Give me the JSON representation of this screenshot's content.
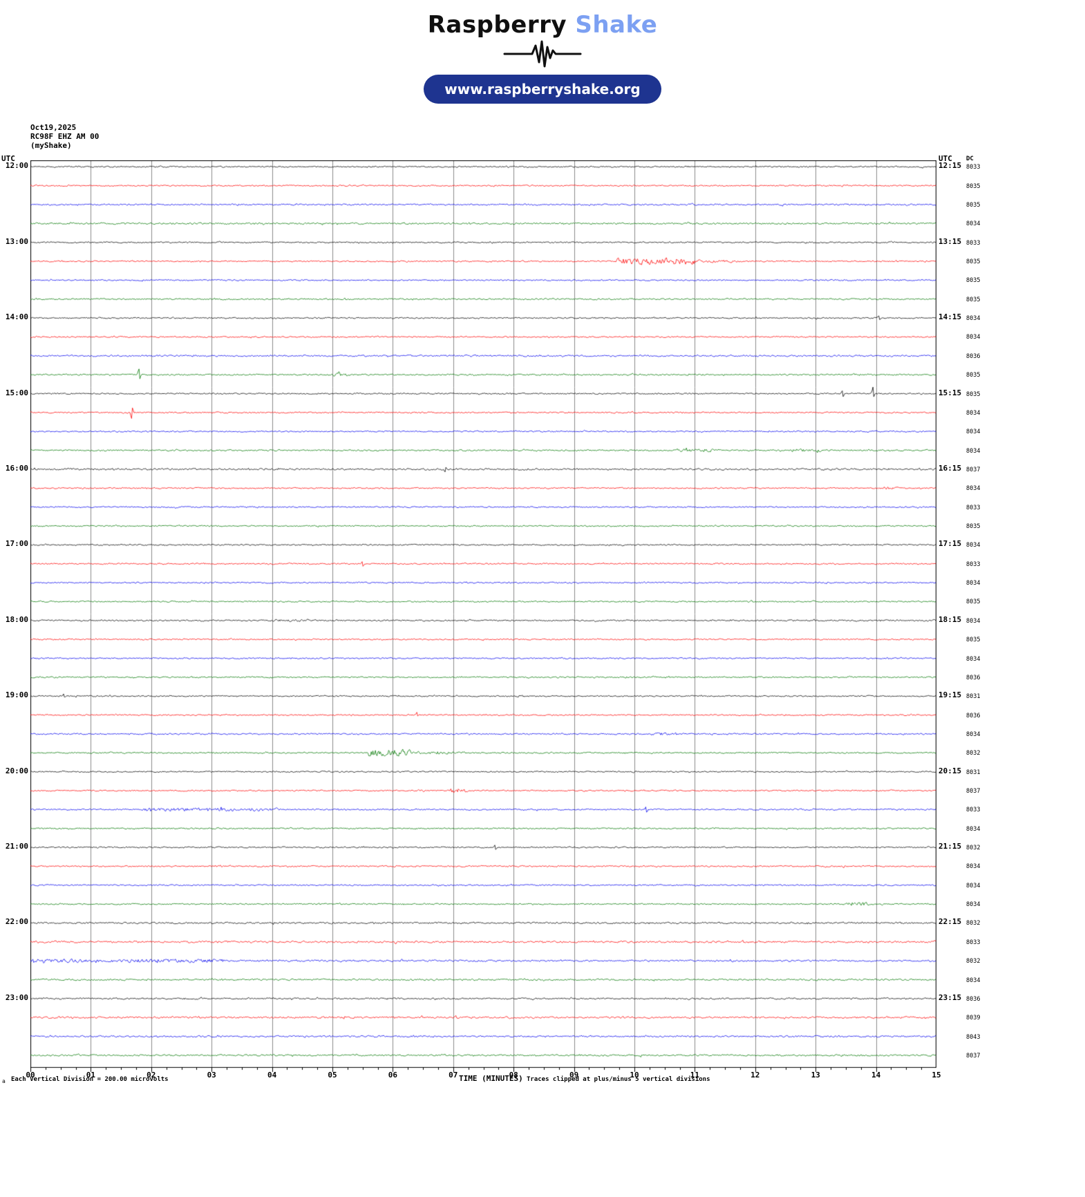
{
  "logo": {
    "word1": "Raspberry",
    "word2": "Shake",
    "accent_color": "#7ca0f2",
    "pill_color": "#1e3490",
    "url_label": "www.raspberryshake.org"
  },
  "station": {
    "date": "Oct19,2025",
    "id": "RC98F EHZ AM 00",
    "name": "(myShake)"
  },
  "axis": {
    "utc_left": "UTC",
    "utc_right": "UTC",
    "dc": "DC",
    "x_ticks": [
      "00",
      "01",
      "02",
      "03",
      "04",
      "05",
      "06",
      "07",
      "08",
      "09",
      "10",
      "11",
      "12",
      "13",
      "14",
      "15"
    ],
    "xlabel": "TIME (MINUTES)",
    "scale_note": "Each Vertical Division =  200.00 microvolts",
    "clip_note": "Traces clipped at plus/minus 5 vertical divisions",
    "corner_mark": "a"
  },
  "chart_data": {
    "type": "line",
    "description": "Helicorder seismogram, 48 traces of 15 minutes each, 12:00-24:00 UTC",
    "x_range_minutes": [
      0,
      15
    ],
    "rows_per_hour": 4,
    "colors_cycle": [
      "#000000",
      "#ff0000",
      "#0000ee",
      "#007700"
    ],
    "hours": [
      "12:00",
      "13:00",
      "14:00",
      "15:00",
      "16:00",
      "17:00",
      "18:00",
      "19:00",
      "20:00",
      "21:00",
      "22:00",
      "23:00"
    ],
    "right_labels": [
      "12:15",
      "13:15",
      "14:15",
      "15:15",
      "16:15",
      "17:15",
      "18:15",
      "19:15",
      "20:15",
      "21:15",
      "22:15",
      "23:15"
    ],
    "rows": [
      {
        "start": "12:00",
        "dc": 8033,
        "noise": 1.0
      },
      {
        "start": "12:15",
        "dc": 8035,
        "noise": 1.0
      },
      {
        "start": "12:30",
        "dc": 8035,
        "noise": 1.15
      },
      {
        "start": "12:45",
        "dc": 8034,
        "noise": 1.3
      },
      {
        "start": "13:00",
        "dc": 8033,
        "noise": 1.0
      },
      {
        "start": "13:15",
        "dc": 8035,
        "noise": 1.0,
        "events": [
          {
            "t0": 9.7,
            "t1": 11.0,
            "amp": 5
          },
          {
            "t0": 11.0,
            "t1": 11.7,
            "amp": 2
          }
        ]
      },
      {
        "start": "13:30",
        "dc": 8035,
        "noise": 1.0
      },
      {
        "start": "13:45",
        "dc": 8035,
        "noise": 1.1
      },
      {
        "start": "14:00",
        "dc": 8034,
        "noise": 1.0,
        "events": [
          {
            "t": 14.05,
            "amp": 4
          }
        ]
      },
      {
        "start": "14:15",
        "dc": 8034,
        "noise": 1.0
      },
      {
        "start": "14:30",
        "dc": 8036,
        "noise": 1.25
      },
      {
        "start": "14:45",
        "dc": 8035,
        "noise": 1.1,
        "events": [
          {
            "t": 1.8,
            "amp": 9
          },
          {
            "t0": 5.0,
            "t1": 5.25,
            "amp": 2.5
          }
        ]
      },
      {
        "start": "15:00",
        "dc": 8035,
        "noise": 1.0,
        "events": [
          {
            "t": 13.45,
            "amp": 6
          },
          {
            "t": 13.95,
            "amp": 9
          }
        ]
      },
      {
        "start": "15:15",
        "dc": 8034,
        "noise": 1.0,
        "events": [
          {
            "t": 1.68,
            "amp": 10,
            "dir": -1
          }
        ]
      },
      {
        "start": "15:30",
        "dc": 8034,
        "noise": 1.0
      },
      {
        "start": "15:45",
        "dc": 8034,
        "noise": 1.1,
        "events": [
          {
            "t0": 10.7,
            "t1": 11.4,
            "amp": 2.2
          },
          {
            "t0": 12.6,
            "t1": 13.1,
            "amp": 2.2
          }
        ]
      },
      {
        "start": "16:00",
        "dc": 8037,
        "noise": 1.35,
        "events": [
          {
            "t": 6.87,
            "amp": 5,
            "dir": -1
          }
        ]
      },
      {
        "start": "16:15",
        "dc": 8034,
        "noise": 1.0,
        "events": [
          {
            "t0": 14.1,
            "t1": 14.4,
            "amp": 2
          }
        ]
      },
      {
        "start": "16:30",
        "dc": 8033,
        "noise": 1.0
      },
      {
        "start": "16:45",
        "dc": 8035,
        "noise": 1.0
      },
      {
        "start": "17:00",
        "dc": 8034,
        "noise": 1.0
      },
      {
        "start": "17:15",
        "dc": 8033,
        "noise": 1.0,
        "events": [
          {
            "t": 5.5,
            "amp": 4
          }
        ]
      },
      {
        "start": "17:30",
        "dc": 8034,
        "noise": 1.0
      },
      {
        "start": "17:45",
        "dc": 8035,
        "noise": 1.0
      },
      {
        "start": "18:00",
        "dc": 8034,
        "noise": 1.1,
        "events": [
          {
            "t0": 4.0,
            "t1": 4.6,
            "amp": 1.8
          }
        ]
      },
      {
        "start": "18:15",
        "dc": 8035,
        "noise": 1.0
      },
      {
        "start": "18:30",
        "dc": 8034,
        "noise": 1.0
      },
      {
        "start": "18:45",
        "dc": 8036,
        "noise": 1.0
      },
      {
        "start": "19:00",
        "dc": 8031,
        "noise": 1.0,
        "events": [
          {
            "t": 0.55,
            "amp": 3
          }
        ]
      },
      {
        "start": "19:15",
        "dc": 8036,
        "noise": 1.0,
        "events": [
          {
            "t": 6.4,
            "amp": 4
          }
        ]
      },
      {
        "start": "19:30",
        "dc": 8034,
        "noise": 1.1,
        "events": [
          {
            "t0": 10.3,
            "t1": 10.7,
            "amp": 2
          }
        ]
      },
      {
        "start": "19:45",
        "dc": 8032,
        "noise": 1.0,
        "events": [
          {
            "t0": 5.6,
            "t1": 6.3,
            "amp": 5
          },
          {
            "t0": 6.3,
            "t1": 7.2,
            "amp": 2
          }
        ]
      },
      {
        "start": "20:00",
        "dc": 8031,
        "noise": 1.0
      },
      {
        "start": "20:15",
        "dc": 8037,
        "noise": 1.0,
        "events": [
          {
            "t0": 6.95,
            "t1": 7.25,
            "amp": 3.5
          }
        ]
      },
      {
        "start": "20:30",
        "dc": 8033,
        "noise": 1.1,
        "events": [
          {
            "t0": 1.8,
            "t1": 4.1,
            "amp": 2.4
          },
          {
            "t": 10.2,
            "amp": 5
          }
        ]
      },
      {
        "start": "20:45",
        "dc": 8034,
        "noise": 1.0
      },
      {
        "start": "21:00",
        "dc": 8032,
        "noise": 1.0,
        "events": [
          {
            "t": 7.7,
            "amp": 3.5
          }
        ]
      },
      {
        "start": "21:15",
        "dc": 8034,
        "noise": 1.1
      },
      {
        "start": "21:30",
        "dc": 8034,
        "noise": 1.0
      },
      {
        "start": "21:45",
        "dc": 8034,
        "noise": 1.0,
        "events": [
          {
            "t0": 13.5,
            "t1": 13.9,
            "amp": 2.5
          }
        ]
      },
      {
        "start": "22:00",
        "dc": 8032,
        "noise": 1.3
      },
      {
        "start": "22:15",
        "dc": 8033,
        "noise": 1.5
      },
      {
        "start": "22:30",
        "dc": 8032,
        "noise": 1.4,
        "events": [
          {
            "t0": 0.0,
            "t1": 3.2,
            "amp": 2.6
          }
        ]
      },
      {
        "start": "22:45",
        "dc": 8034,
        "noise": 1.25
      },
      {
        "start": "23:00",
        "dc": 8036,
        "noise": 1.2
      },
      {
        "start": "23:15",
        "dc": 8039,
        "noise": 1.4
      },
      {
        "start": "23:30",
        "dc": 8043,
        "noise": 1.3
      },
      {
        "start": "23:45",
        "dc": 8037,
        "noise": 1.25
      }
    ]
  }
}
